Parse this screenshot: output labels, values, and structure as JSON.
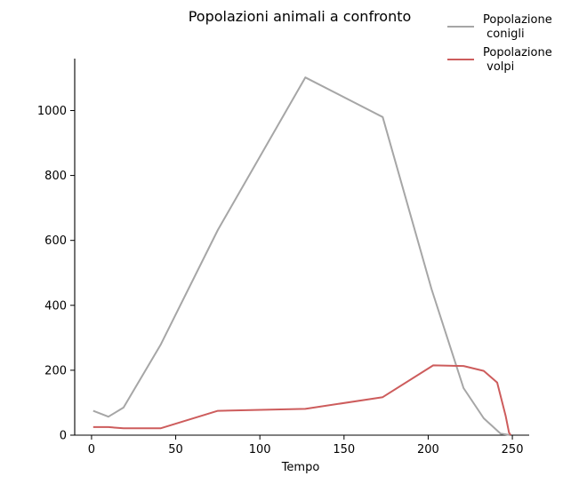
{
  "chart_data": {
    "type": "line",
    "title": "Popolazioni animali a confronto",
    "xlabel": "Tempo",
    "ylabel": "",
    "xlim": [
      -10,
      260
    ],
    "ylim": [
      0,
      1160
    ],
    "xticks": [
      0,
      50,
      100,
      150,
      200,
      250
    ],
    "yticks": [
      0,
      200,
      400,
      600,
      800,
      1000
    ],
    "grid": false,
    "legend_placement": "top-right",
    "series": [
      {
        "name": "Popolazione\n conigli",
        "color": "#a6a6a6",
        "x": [
          1,
          10,
          19,
          41,
          75,
          127,
          173,
          202,
          221,
          233,
          243,
          249
        ],
        "y": [
          75,
          57,
          85,
          278,
          632,
          1102,
          980,
          450,
          145,
          52,
          5,
          0
        ]
      },
      {
        "name": "Popolazione\n volpi",
        "color": "#cd5c5c",
        "x": [
          1,
          10,
          19,
          41,
          75,
          127,
          173,
          203,
          221,
          233,
          241,
          246,
          248,
          249
        ],
        "y": [
          25,
          25,
          21,
          21,
          75,
          81,
          117,
          215,
          213,
          198,
          162,
          60,
          8,
          0
        ]
      }
    ]
  }
}
